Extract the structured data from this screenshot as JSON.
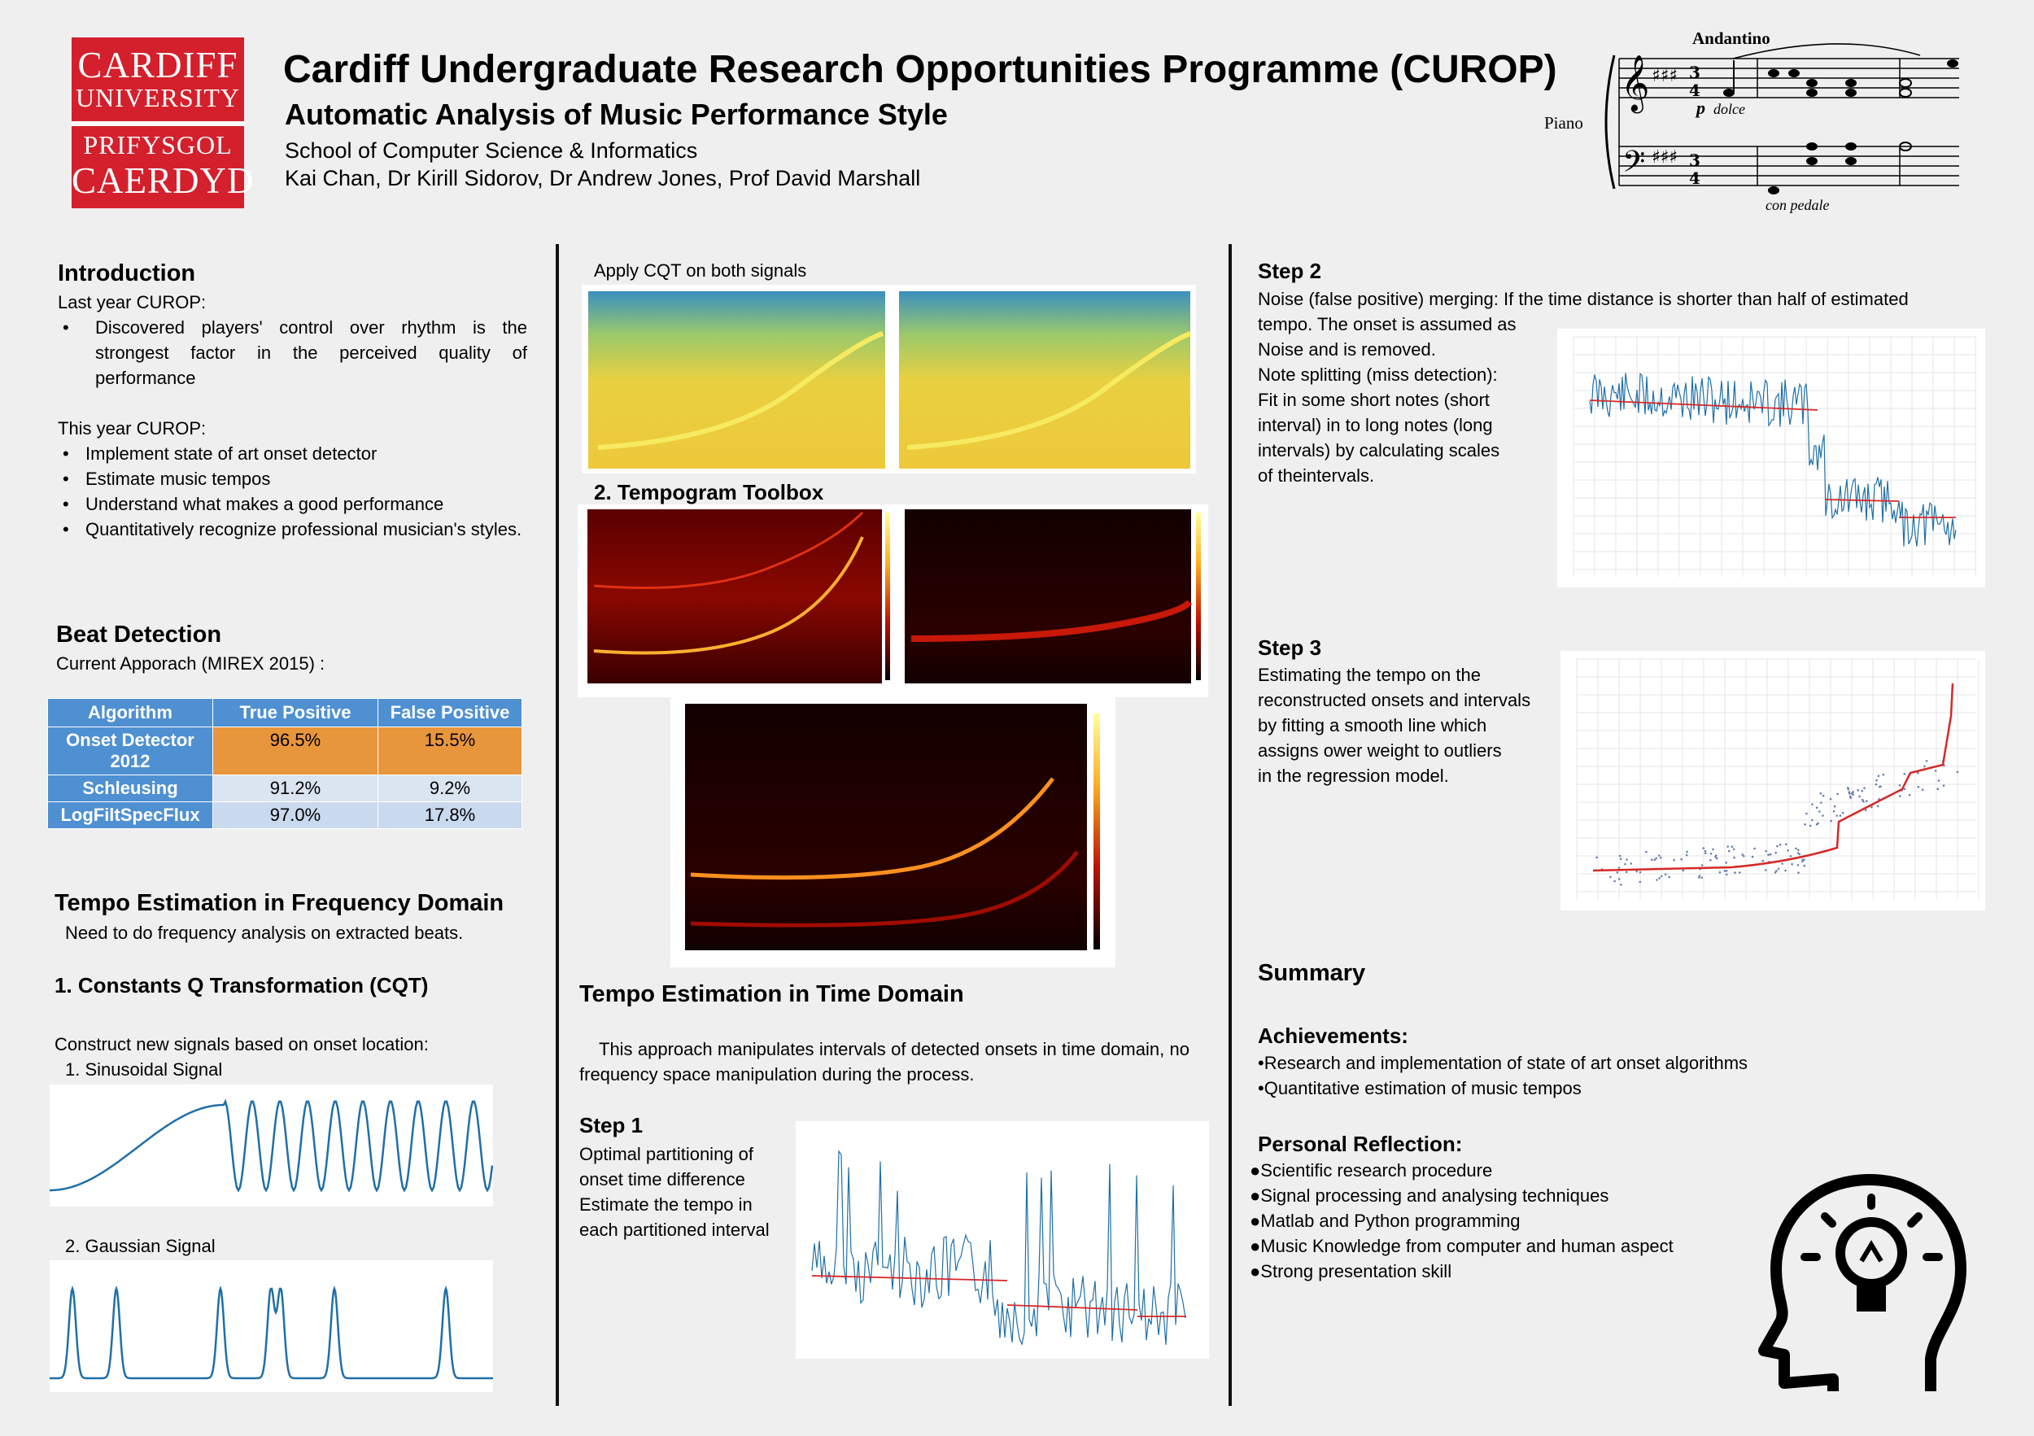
{
  "header": {
    "logo_lines": [
      "CARDIFF",
      "UNIVERSITY",
      "PRIFYSGOL",
      "CAERDYD"
    ],
    "title": "Cardiff Undergraduate Research Opportunities Programme (CUROP)",
    "subtitle": "Automatic Analysis of Music Performance Style",
    "school": "School of Computer Science & Informatics",
    "authors": "Kai Chan, Dr Kirill Sidorov, Dr Andrew Jones, Prof David Marshall",
    "score": {
      "tempo": "Andantino",
      "instrument": "Piano",
      "dynamic": "p",
      "expression": "dolce",
      "pedal": "con pedale"
    }
  },
  "introduction": {
    "heading": "Introduction",
    "last_year_label": "Last year CUROP:",
    "last_year_items": [
      "Discovered players' control over rhythm is the strongest factor in the perceived quality of performance"
    ],
    "this_year_label": "This year CUROP:",
    "this_year_items": [
      "Implement state of art onset detector",
      "Estimate music tempos",
      "Understand what makes a good performance",
      "Quantitatively recognize professional musician's styles."
    ]
  },
  "beat_detection": {
    "heading": "Beat Detection",
    "intro": "Current Apporach (MIREX 2015) :",
    "table": {
      "headers": [
        "Algorithm",
        "True Positive",
        "False Positive"
      ],
      "rows": [
        [
          "Onset Detector 2012",
          "96.5%",
          "15.5%"
        ],
        [
          "Schleusing",
          "91.2%",
          "9.2%"
        ],
        [
          "LogFiltSpecFlux",
          "97.0%",
          "17.8%"
        ]
      ]
    }
  },
  "freq_domain": {
    "heading": "Tempo Estimation in Frequency Domain",
    "intro": "Need to do frequency analysis on extracted beats.",
    "cqt_heading": "1. Constants Q Transformation (CQT)",
    "construct": "Construct new signals based on onset location:",
    "sin_label": "1. Sinusoidal Signal",
    "gauss_label": "2. Gaussian Signal",
    "apply_cqt": "Apply CQT on both signals",
    "tempogram_heading": "2. Tempogram Toolbox"
  },
  "time_domain": {
    "heading": "Tempo Estimation in Time Domain",
    "intro": "This approach manipulates intervals of detected onsets in time domain, no frequency space manipulation during the process.",
    "step1_heading": "Step 1",
    "step1_text": "Optimal partitioning of onset time difference Estimate the tempo in each partitioned interval"
  },
  "step2": {
    "heading": "Step 2",
    "line1": "Noise (false positive) merging: If the time distance is shorter than half of estimated",
    "lines": [
      "tempo. The onset is assumed as",
      "Noise and is removed.",
      "Note splitting (miss detection):",
      "Fit in some short notes (short",
      "interval) in to long notes (long",
      "intervals) by calculating scales",
      "of theintervals."
    ]
  },
  "step3": {
    "heading": "Step 3",
    "lines": [
      "Estimating the tempo on the",
      "reconstructed onsets and intervals",
      "by fitting a smooth line which",
      "assigns ower weight to outliers",
      "in the regression model."
    ]
  },
  "summary": {
    "heading": "Summary",
    "achievements_heading": "Achievements:",
    "achievements": [
      "•Research and implementation of state of art onset algorithms",
      "•Quantitative estimation of music tempos"
    ],
    "reflection_heading": "Personal Reflection:",
    "reflection": [
      "●Scientific research procedure",
      "●Signal processing and analysing techniques",
      "●Matlab and Python programming",
      "●Music Knowledge from computer and human aspect",
      "●Strong presentation skill"
    ]
  },
  "colors": {
    "brand_red": "#d4202c",
    "table_header": "#4f90d2",
    "highlight_orange": "#e8963c",
    "signal_blue": "#1f6fa8"
  }
}
